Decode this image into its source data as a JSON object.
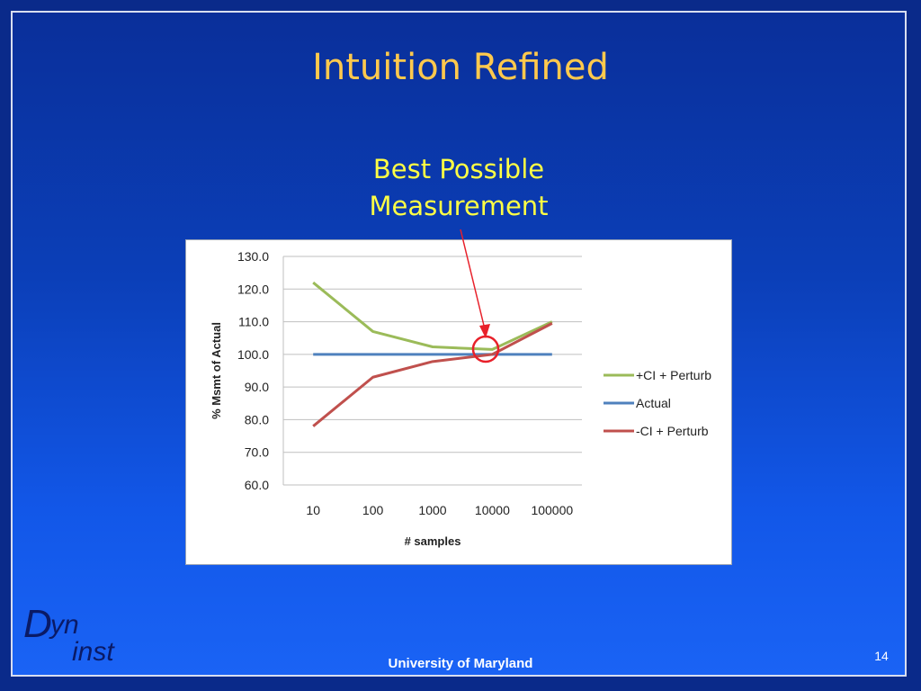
{
  "slide": {
    "title": "Intuition Refined",
    "callout_lines": [
      "Best Possible",
      "Measurement"
    ],
    "footer": "University of Maryland",
    "page_number": "14",
    "logo": {
      "d": "D",
      "yn": "yn",
      "inst": "inst"
    }
  },
  "colors": {
    "title": "#ffc94d",
    "callout": "#ffff44",
    "arrow": "#e8202a",
    "circle": "#e8202a"
  },
  "chart_data": {
    "type": "line",
    "categories": [
      "10",
      "100",
      "1000",
      "10000",
      "100000"
    ],
    "series": [
      {
        "name": "+CI + Perturb",
        "color": "#9bbb59",
        "values": [
          122.0,
          107.0,
          102.3,
          101.5,
          110.0
        ]
      },
      {
        "name": "Actual",
        "color": "#4f81bd",
        "values": [
          100.0,
          100.0,
          100.0,
          100.0,
          100.0
        ]
      },
      {
        "name": "-CI + Perturb",
        "color": "#c0504d",
        "values": [
          78.0,
          93.0,
          97.8,
          100.0,
          109.5
        ]
      }
    ],
    "xlabel": "# samples",
    "ylabel": "% Msmt of Actual",
    "ylim": [
      60,
      130
    ],
    "yticks": [
      "60.0",
      "70.0",
      "80.0",
      "90.0",
      "100.0",
      "110.0",
      "120.0",
      "130.0"
    ],
    "grid": true,
    "legend": "right",
    "highlight": {
      "category": "10000",
      "value": 100.5
    }
  }
}
